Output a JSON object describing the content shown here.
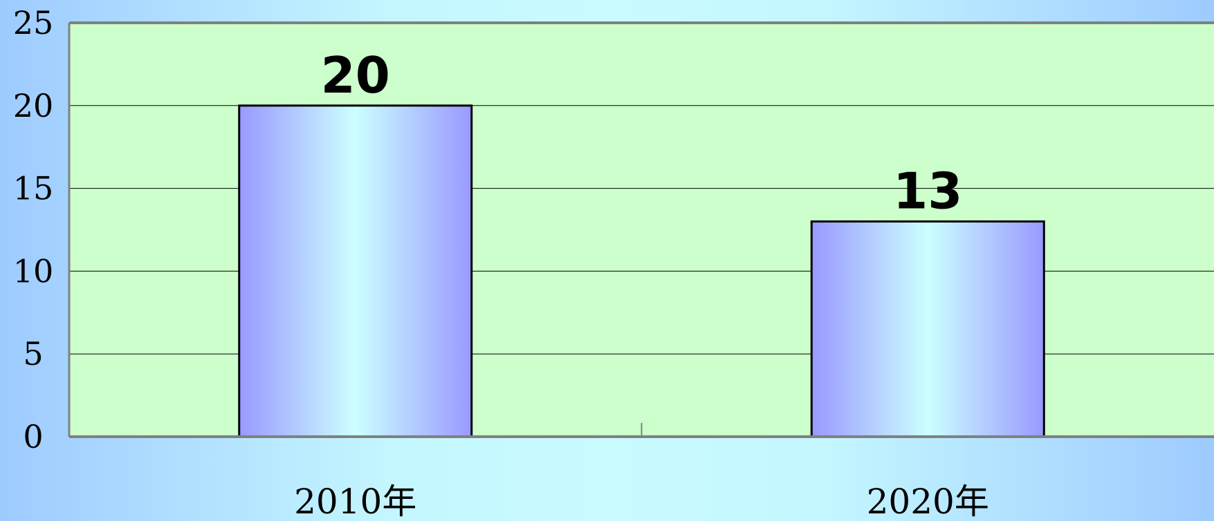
{
  "chart_data": {
    "type": "bar",
    "categories": [
      "2010年",
      "2020年"
    ],
    "values": [
      20,
      13
    ],
    "data_labels": [
      "20",
      "13"
    ],
    "title": "",
    "xlabel": "",
    "ylabel": "",
    "ylim": [
      0,
      25
    ],
    "yticks": [
      0,
      5,
      10,
      15,
      20,
      25
    ],
    "ytick_labels": [
      "0",
      "5",
      "10",
      "15",
      "20",
      "25"
    ],
    "grid": true,
    "legend": "none",
    "colors": {
      "plot_background": "#ccffcc",
      "bar_edge": "#9999ff",
      "bar_center": "#ccffff",
      "bar_outline": "#000000",
      "gridline": "#000000",
      "axis": "#808080"
    }
  }
}
